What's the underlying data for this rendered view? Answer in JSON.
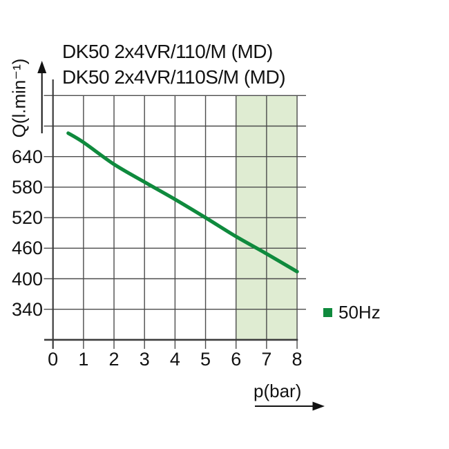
{
  "title": {
    "line1": "DK50 2x4VR/110/M (MD)",
    "line2": "DK50 2x4VR/110S/M (MD)"
  },
  "chart_data": {
    "type": "line",
    "title": "DK50 2x4VR/110/M (MD) / DK50 2x4VR/110S/M (MD)",
    "xlabel": "p(bar)",
    "ylabel": "Q(l.min⁻¹)",
    "xlim": [
      0,
      8
    ],
    "ylim": [
      280,
      760
    ],
    "x_tick_labels": [
      0,
      1,
      2,
      3,
      4,
      5,
      6,
      7,
      8
    ],
    "y_tick_labels": [
      640,
      580,
      520,
      460,
      400,
      340
    ],
    "x_gridline_step": 1,
    "y_gridline_step": 60,
    "grid": true,
    "shaded_region": {
      "x_from": 6,
      "x_to": 8,
      "color": "#dfecd2"
    },
    "series": [
      {
        "name": "50Hz",
        "color": "#0f8a3d",
        "points": [
          [
            0.5,
            686
          ],
          [
            1,
            668
          ],
          [
            2,
            625
          ],
          [
            3,
            590
          ],
          [
            4,
            556
          ],
          [
            5,
            520
          ],
          [
            6,
            483
          ],
          [
            7,
            449
          ],
          [
            8,
            414
          ]
        ]
      }
    ],
    "legend_position": "right-bottom"
  },
  "colors": {
    "grid": "#4b4b4b",
    "axis": "#3c3c3c",
    "text": "#121212",
    "curve": "#0f8a3d",
    "band": "#dfecd2"
  }
}
